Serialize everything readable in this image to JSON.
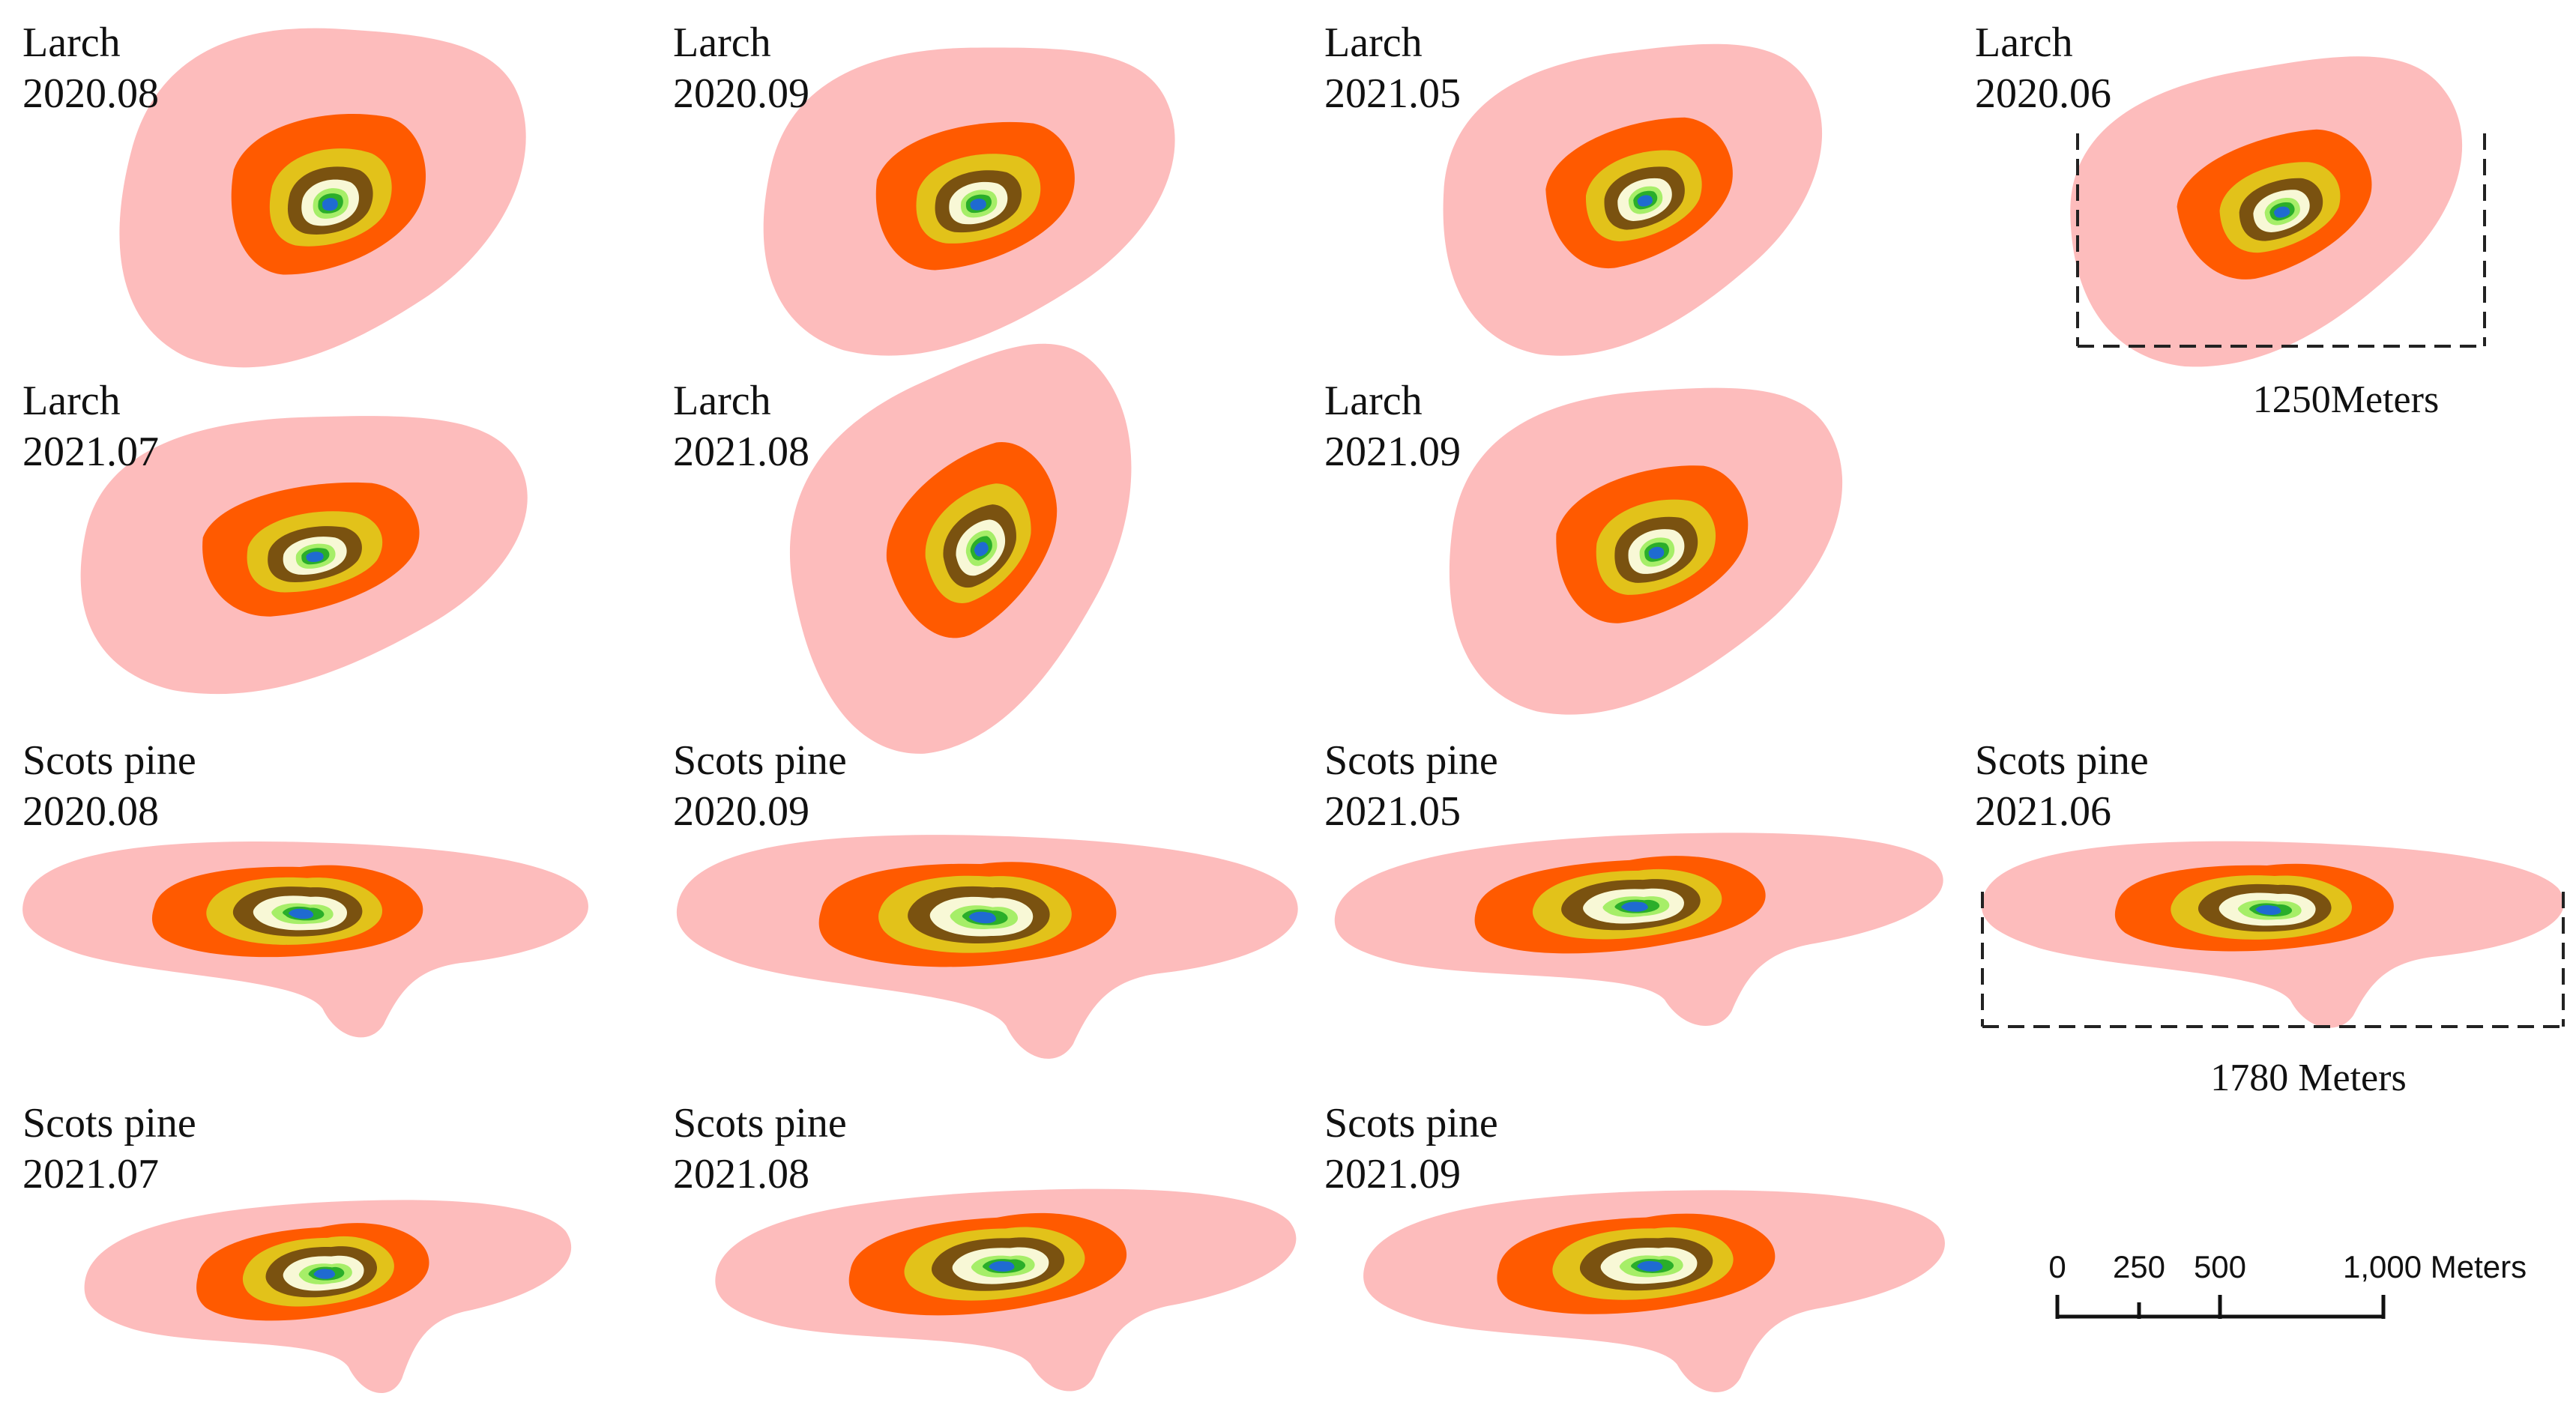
{
  "figure": {
    "panels": [
      {
        "species": "Larch",
        "date": "2020.08"
      },
      {
        "species": "Larch",
        "date": "2020.09"
      },
      {
        "species": "Larch",
        "date": "2021.05"
      },
      {
        "species": "Larch",
        "date": "2020.06"
      },
      {
        "species": "Larch",
        "date": "2021.07"
      },
      {
        "species": "Larch",
        "date": "2021.08"
      },
      {
        "species": "Larch",
        "date": "2021.09"
      },
      {
        "species": "Scots pine",
        "date": "2020.08"
      },
      {
        "species": "Scots pine",
        "date": "2020.09"
      },
      {
        "species": "Scots pine",
        "date": "2021.05"
      },
      {
        "species": "Scots pine",
        "date": "2021.06"
      },
      {
        "species": "Scots pine",
        "date": "2021.07"
      },
      {
        "species": "Scots pine",
        "date": "2021.08"
      },
      {
        "species": "Scots pine",
        "date": "2021.09"
      }
    ],
    "larch_extent_label": "1250Meters",
    "pine_extent_label": "1780 Meters",
    "scale_bar": {
      "ticks": [
        "0",
        "250",
        "500",
        "1,000 Meters"
      ],
      "values": [
        0,
        250,
        500,
        1000
      ]
    },
    "zone_colors": [
      "#fdbcbc",
      "#ff5a00",
      "#e2c21a",
      "#7a5210",
      "#f8f8d6",
      "#a6ee68",
      "#2aae2a",
      "#1f6bd1"
    ]
  }
}
